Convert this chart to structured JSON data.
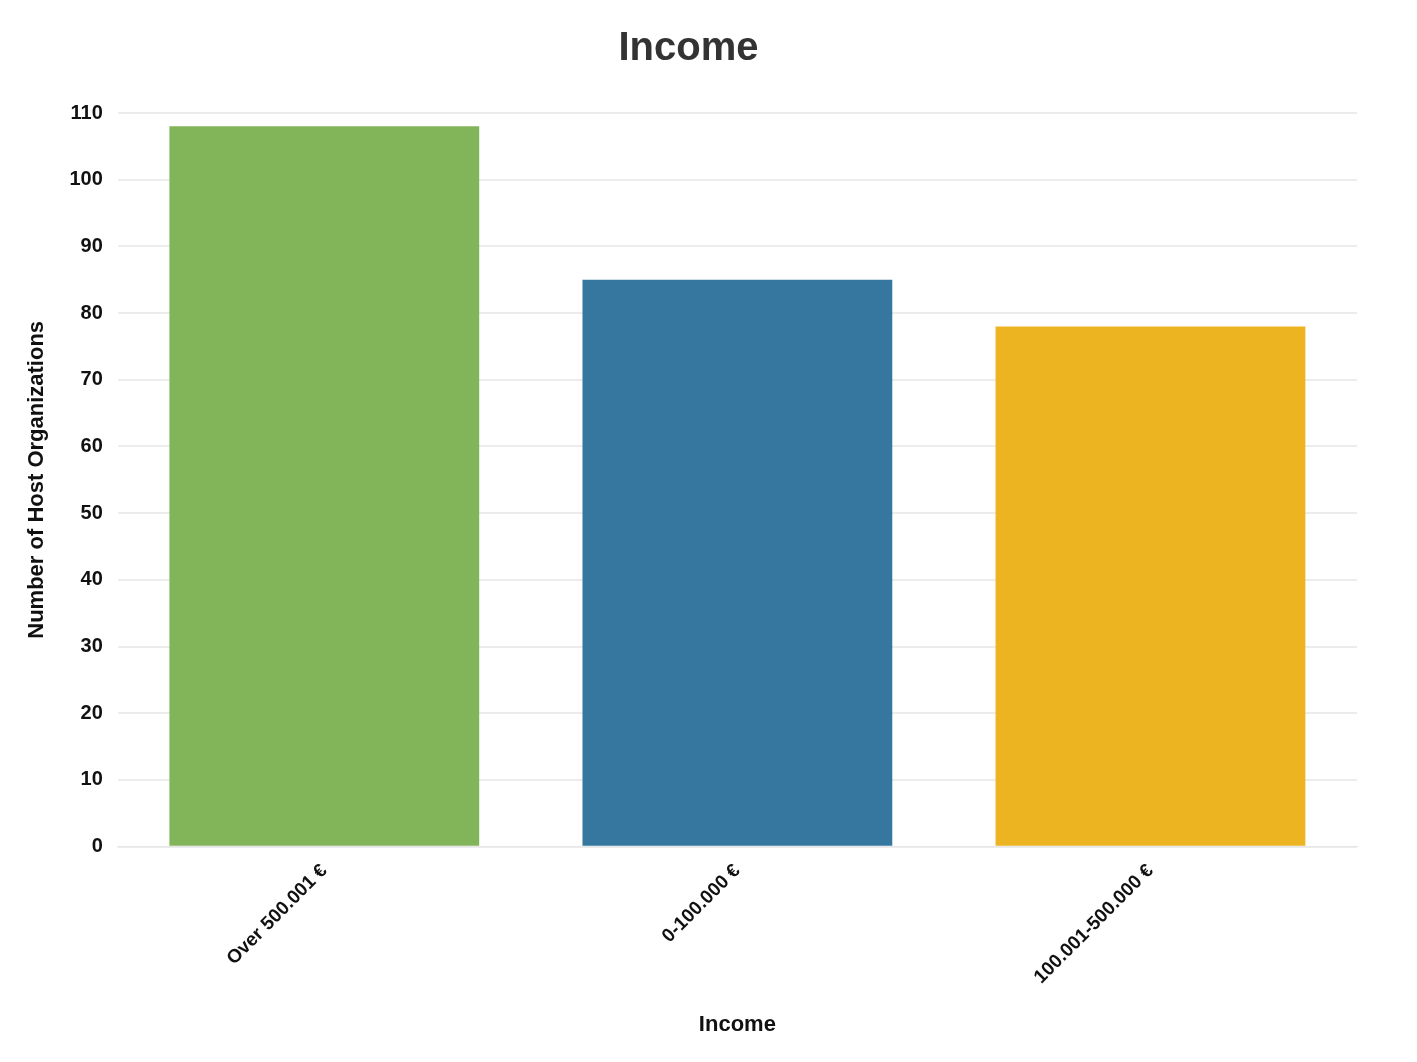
{
  "chart_data": {
    "type": "bar",
    "title": "Income",
    "xlabel": "Income",
    "ylabel": "Number of Host Organizations",
    "categories": [
      "Over 500.001 €",
      "0-100.000 €",
      "100.001-500.000 €"
    ],
    "values": [
      108,
      85,
      78
    ],
    "colors": [
      "#82b55a",
      "#3677a0",
      "#edb422"
    ],
    "ylim": [
      0,
      110
    ],
    "yticks": [
      0,
      10,
      20,
      30,
      40,
      50,
      60,
      70,
      80,
      90,
      100,
      110
    ],
    "grid": "y",
    "legend": false
  }
}
